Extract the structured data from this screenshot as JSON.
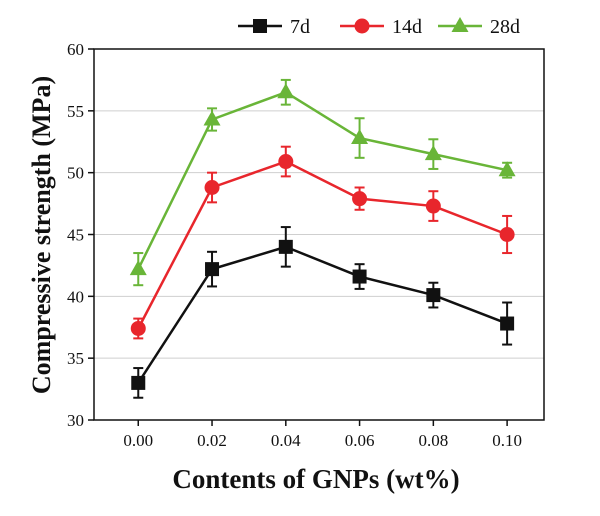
{
  "chart_data": {
    "type": "line",
    "title": "",
    "xlabel": "Contents  of GNPs (wt%)",
    "ylabel": "Compressive strength (MPa)",
    "x": [
      0.0,
      0.02,
      0.04,
      0.06,
      0.08,
      0.1
    ],
    "x_tick_labels": [
      "0.00",
      "0.02",
      "0.04",
      "0.06",
      "0.08",
      "0.10"
    ],
    "xlim": [
      -0.012,
      0.11
    ],
    "ylim": [
      30,
      60
    ],
    "y_ticks": [
      30,
      35,
      40,
      45,
      50,
      55,
      60
    ],
    "grid": "horizontal",
    "legend_position": "top",
    "series": [
      {
        "name": "7d",
        "color": "#111111",
        "marker": "square",
        "values": [
          33.0,
          42.2,
          44.0,
          41.6,
          40.1,
          37.8
        ],
        "errors": [
          1.2,
          1.4,
          1.6,
          1.0,
          1.0,
          1.7
        ]
      },
      {
        "name": "14d",
        "color": "#e8262c",
        "marker": "circle",
        "values": [
          37.4,
          48.8,
          50.9,
          47.9,
          47.3,
          45.0
        ],
        "errors": [
          0.8,
          1.2,
          1.2,
          0.9,
          1.2,
          1.5
        ]
      },
      {
        "name": "28d",
        "color": "#69b538",
        "marker": "triangle",
        "values": [
          42.2,
          54.3,
          56.5,
          52.8,
          51.5,
          50.2
        ],
        "errors": [
          1.3,
          0.9,
          1.0,
          1.6,
          1.2,
          0.6
        ]
      }
    ]
  }
}
